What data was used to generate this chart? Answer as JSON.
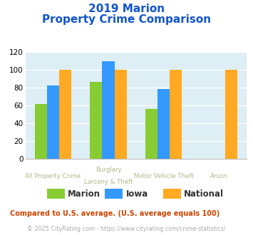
{
  "title_line1": "2019 Marion",
  "title_line2": "Property Crime Comparison",
  "cat_labels_line1": [
    "All Property Crime",
    "Burglary",
    "Motor Vehicle Theft",
    "Arson"
  ],
  "cat_labels_line2": [
    "",
    "Larceny & Theft",
    "",
    ""
  ],
  "series": {
    "Marion": [
      61,
      86,
      56,
      0
    ],
    "Iowa": [
      82,
      109,
      78,
      0
    ],
    "National": [
      100,
      100,
      100,
      100
    ]
  },
  "colors": {
    "Marion": "#88cc33",
    "Iowa": "#3399ff",
    "National": "#ffaa22"
  },
  "ylim": [
    0,
    120
  ],
  "yticks": [
    0,
    20,
    40,
    60,
    80,
    100,
    120
  ],
  "background_color": "#ddeef5",
  "title_color": "#1155cc",
  "xlabel_color": "#aabb88",
  "footnote_color": "#cc4400",
  "footnote2_color": "#aaaaaa",
  "footnote": "Compared to U.S. average. (U.S. average equals 100)",
  "footnote2": "© 2025 CityRating.com - https://www.cityrating.com/crime-statistics/"
}
